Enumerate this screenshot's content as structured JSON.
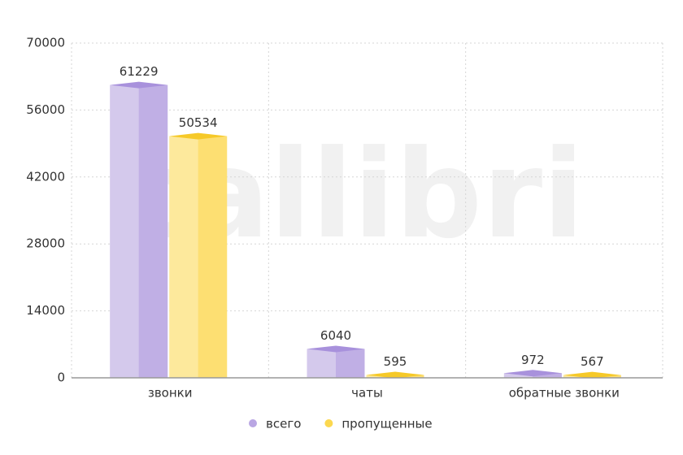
{
  "chart_data": {
    "type": "bar",
    "watermark": "callibri",
    "categories": [
      "звонки",
      "чаты",
      "обратные звонки"
    ],
    "series": [
      {
        "name": "всего",
        "color": "#b9a6e3",
        "values": [
          61229,
          6040,
          972
        ]
      },
      {
        "name": "пропущенные",
        "color": "#fcd84f",
        "values": [
          50534,
          595,
          567
        ]
      }
    ],
    "ylim": [
      0,
      70000
    ],
    "yticks": [
      0,
      14000,
      28000,
      42000,
      56000,
      70000
    ],
    "grid": true,
    "legend": "bottom"
  }
}
